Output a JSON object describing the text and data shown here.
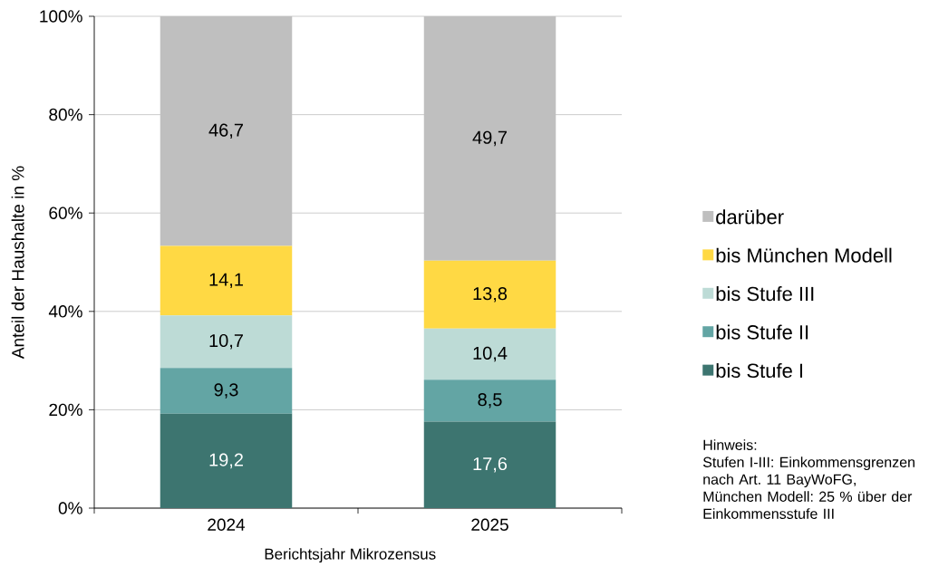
{
  "chart_data": {
    "type": "bar",
    "stacked": true,
    "xlabel": "Berichtsjahr Mikrozensus",
    "ylabel": "Anteil der Haushalte in %",
    "categories": [
      "2024",
      "2025"
    ],
    "series": [
      {
        "name": "bis Stufe I",
        "color": "#3d7570",
        "values": [
          19.2,
          17.6
        ],
        "value_labels": [
          "19,2",
          "17,6"
        ]
      },
      {
        "name": "bis Stufe II",
        "color": "#63a5a4",
        "values": [
          9.3,
          8.5
        ],
        "value_labels": [
          "9,3",
          "8,5"
        ]
      },
      {
        "name": "bis Stufe III",
        "color": "#bddbd6",
        "values": [
          10.7,
          10.4
        ],
        "value_labels": [
          "10,7",
          "10,4"
        ]
      },
      {
        "name": "bis München Modell",
        "color": "#ffd944",
        "values": [
          14.1,
          13.8
        ],
        "value_labels": [
          "14,1",
          "13,8"
        ]
      },
      {
        "name": "darüber",
        "color": "#bfbfbf",
        "values": [
          46.7,
          49.7
        ],
        "value_labels": [
          "46,7",
          "49,7"
        ]
      }
    ],
    "ylim": [
      0,
      100
    ],
    "yticks": [
      {
        "value": 0,
        "label": "0%"
      },
      {
        "value": 20,
        "label": "20%"
      },
      {
        "value": 40,
        "label": "40%"
      },
      {
        "value": 60,
        "label": "60%"
      },
      {
        "value": 80,
        "label": "80%"
      },
      {
        "value": 100,
        "label": "100%"
      }
    ],
    "grid": "y",
    "legend": "right",
    "annotations": [
      "Hinweis:",
      "Stufen I-III: Einkommensgrenzen nach Art. 11 BayWoFG,",
      "München Modell: 25 % über der Einkommensstufe III"
    ]
  }
}
